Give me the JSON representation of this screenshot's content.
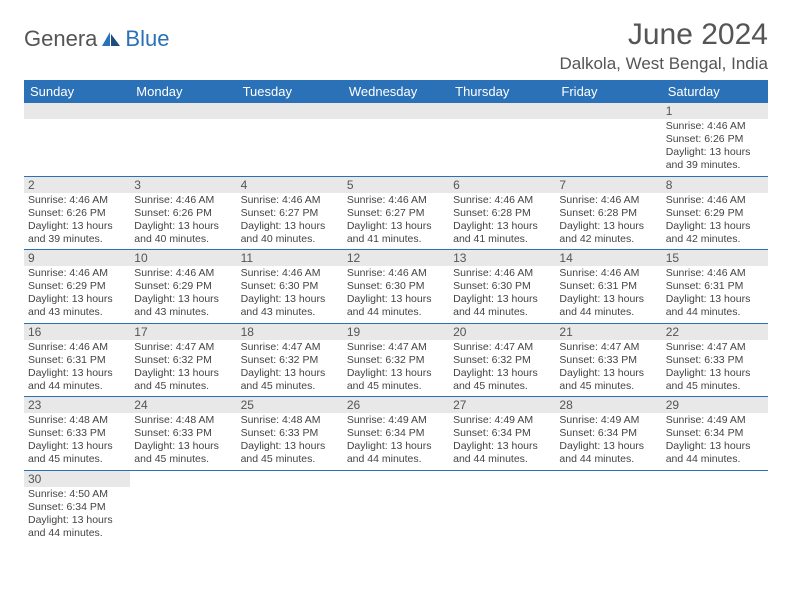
{
  "logo": {
    "text1": "Genera",
    "text2": "Blue"
  },
  "title": "June 2024",
  "location": "Dalkola, West Bengal, India",
  "colors": {
    "header_bg": "#2a71b8",
    "header_text": "#ffffff",
    "daynum_bg": "#e8e8e8",
    "border": "#2a71b8",
    "text": "#444444"
  },
  "weekdays": [
    "Sunday",
    "Monday",
    "Tuesday",
    "Wednesday",
    "Thursday",
    "Friday",
    "Saturday"
  ],
  "weeks": [
    [
      null,
      null,
      null,
      null,
      null,
      null,
      {
        "n": "1",
        "sr": "4:46 AM",
        "ss": "6:26 PM",
        "dl": "13 hours and 39 minutes."
      }
    ],
    [
      {
        "n": "2",
        "sr": "4:46 AM",
        "ss": "6:26 PM",
        "dl": "13 hours and 39 minutes."
      },
      {
        "n": "3",
        "sr": "4:46 AM",
        "ss": "6:26 PM",
        "dl": "13 hours and 40 minutes."
      },
      {
        "n": "4",
        "sr": "4:46 AM",
        "ss": "6:27 PM",
        "dl": "13 hours and 40 minutes."
      },
      {
        "n": "5",
        "sr": "4:46 AM",
        "ss": "6:27 PM",
        "dl": "13 hours and 41 minutes."
      },
      {
        "n": "6",
        "sr": "4:46 AM",
        "ss": "6:28 PM",
        "dl": "13 hours and 41 minutes."
      },
      {
        "n": "7",
        "sr": "4:46 AM",
        "ss": "6:28 PM",
        "dl": "13 hours and 42 minutes."
      },
      {
        "n": "8",
        "sr": "4:46 AM",
        "ss": "6:29 PM",
        "dl": "13 hours and 42 minutes."
      }
    ],
    [
      {
        "n": "9",
        "sr": "4:46 AM",
        "ss": "6:29 PM",
        "dl": "13 hours and 43 minutes."
      },
      {
        "n": "10",
        "sr": "4:46 AM",
        "ss": "6:29 PM",
        "dl": "13 hours and 43 minutes."
      },
      {
        "n": "11",
        "sr": "4:46 AM",
        "ss": "6:30 PM",
        "dl": "13 hours and 43 minutes."
      },
      {
        "n": "12",
        "sr": "4:46 AM",
        "ss": "6:30 PM",
        "dl": "13 hours and 44 minutes."
      },
      {
        "n": "13",
        "sr": "4:46 AM",
        "ss": "6:30 PM",
        "dl": "13 hours and 44 minutes."
      },
      {
        "n": "14",
        "sr": "4:46 AM",
        "ss": "6:31 PM",
        "dl": "13 hours and 44 minutes."
      },
      {
        "n": "15",
        "sr": "4:46 AM",
        "ss": "6:31 PM",
        "dl": "13 hours and 44 minutes."
      }
    ],
    [
      {
        "n": "16",
        "sr": "4:46 AM",
        "ss": "6:31 PM",
        "dl": "13 hours and 44 minutes."
      },
      {
        "n": "17",
        "sr": "4:47 AM",
        "ss": "6:32 PM",
        "dl": "13 hours and 45 minutes."
      },
      {
        "n": "18",
        "sr": "4:47 AM",
        "ss": "6:32 PM",
        "dl": "13 hours and 45 minutes."
      },
      {
        "n": "19",
        "sr": "4:47 AM",
        "ss": "6:32 PM",
        "dl": "13 hours and 45 minutes."
      },
      {
        "n": "20",
        "sr": "4:47 AM",
        "ss": "6:32 PM",
        "dl": "13 hours and 45 minutes."
      },
      {
        "n": "21",
        "sr": "4:47 AM",
        "ss": "6:33 PM",
        "dl": "13 hours and 45 minutes."
      },
      {
        "n": "22",
        "sr": "4:47 AM",
        "ss": "6:33 PM",
        "dl": "13 hours and 45 minutes."
      }
    ],
    [
      {
        "n": "23",
        "sr": "4:48 AM",
        "ss": "6:33 PM",
        "dl": "13 hours and 45 minutes."
      },
      {
        "n": "24",
        "sr": "4:48 AM",
        "ss": "6:33 PM",
        "dl": "13 hours and 45 minutes."
      },
      {
        "n": "25",
        "sr": "4:48 AM",
        "ss": "6:33 PM",
        "dl": "13 hours and 45 minutes."
      },
      {
        "n": "26",
        "sr": "4:49 AM",
        "ss": "6:34 PM",
        "dl": "13 hours and 44 minutes."
      },
      {
        "n": "27",
        "sr": "4:49 AM",
        "ss": "6:34 PM",
        "dl": "13 hours and 44 minutes."
      },
      {
        "n": "28",
        "sr": "4:49 AM",
        "ss": "6:34 PM",
        "dl": "13 hours and 44 minutes."
      },
      {
        "n": "29",
        "sr": "4:49 AM",
        "ss": "6:34 PM",
        "dl": "13 hours and 44 minutes."
      }
    ],
    [
      {
        "n": "30",
        "sr": "4:50 AM",
        "ss": "6:34 PM",
        "dl": "13 hours and 44 minutes."
      },
      null,
      null,
      null,
      null,
      null,
      null
    ]
  ],
  "labels": {
    "sunrise": "Sunrise:",
    "sunset": "Sunset:",
    "daylight": "Daylight:"
  }
}
